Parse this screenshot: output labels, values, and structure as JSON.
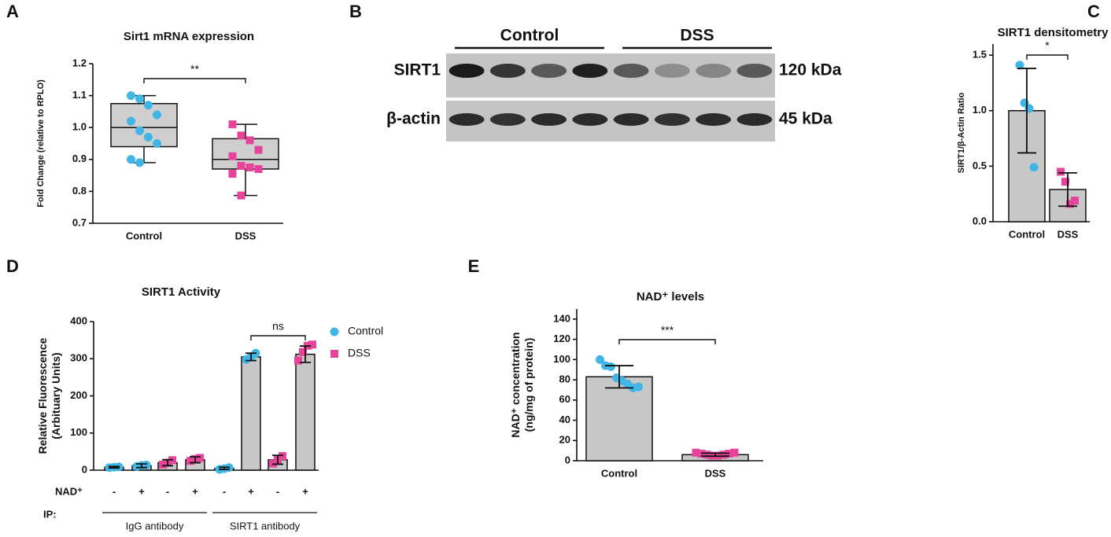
{
  "chart_data": [
    {
      "type": "box",
      "panel": "A",
      "title": "Sirt1 mRNA expression",
      "ylabel": "Fold Change (relative to RPLO)",
      "categories": [
        "Control",
        "DSS"
      ],
      "ylim": [
        0.7,
        1.2
      ],
      "yticks": [
        0.7,
        0.8,
        0.9,
        {
          "value": 1,
          "label": "1.0"
        },
        1.1,
        1.2
      ],
      "boxes": [
        {
          "color": "#41b6e6",
          "marker": "circle",
          "min": 0.89,
          "q1": 0.94,
          "median": 1.0,
          "q3": 1.075,
          "max": 1.1,
          "points": [
            1.1,
            1.09,
            1.07,
            1.04,
            1.02,
            0.99,
            0.97,
            0.95,
            0.9,
            0.89
          ]
        },
        {
          "color": "#e6449b",
          "marker": "square",
          "min": 0.787,
          "q1": 0.87,
          "median": 0.9,
          "q3": 0.965,
          "max": 1.01,
          "points": [
            1.01,
            0.975,
            0.96,
            0.93,
            0.91,
            0.88,
            0.875,
            0.87,
            0.855,
            0.787
          ]
        }
      ],
      "annotation": "**"
    },
    {
      "type": "blot",
      "panel": "B",
      "groups": [
        "Control",
        "DSS"
      ],
      "rows": [
        {
          "label": "SIRT1",
          "size": "120 kDa"
        },
        {
          "label": "β-actin",
          "size": "45 kDa"
        }
      ]
    },
    {
      "type": "bar",
      "panel": "C",
      "title": "SIRT1 densitometry",
      "ylabel": "SIRT1/β-Actin Ratio",
      "categories": [
        "Control",
        "DSS"
      ],
      "values": [
        1.0,
        0.29
      ],
      "errors": [
        0.38,
        0.15
      ],
      "color": "#c8c8c8",
      "point_colors": [
        "#41b6e6",
        "#e6449b"
      ],
      "markers": [
        "circle",
        "square"
      ],
      "points": [
        [
          1.41,
          1.07,
          1.02,
          0.49
        ],
        [
          0.45,
          0.36,
          0.16,
          0.19
        ]
      ],
      "ylim": [
        0,
        1.6
      ],
      "yticks": [
        {
          "value": 0,
          "label": "0.0"
        },
        0.5,
        {
          "value": 1,
          "label": "1.0"
        },
        1.5
      ],
      "annotation": "*"
    },
    {
      "type": "grouped",
      "panel": "D",
      "title": "SIRT1 Activity",
      "ylabel": [
        "Relative Fluorescence",
        "(Arbituary Units)"
      ],
      "row_label": "NAD⁺",
      "group_label": "IP:",
      "groups": [
        "IgG antibody",
        "SIRT1 antibody"
      ],
      "categories": [
        "-",
        "+",
        "-",
        "+",
        "-",
        "+",
        "-",
        "+"
      ],
      "color": "#c8c8c8",
      "series": [
        {
          "name": "Control",
          "color": "#41b6e6",
          "marker": "circle",
          "values": [
            8,
            12,
            null,
            null,
            5,
            305,
            null,
            null
          ],
          "errors": [
            2,
            5,
            null,
            null,
            3,
            10,
            null,
            null
          ],
          "points": [
            [
              7,
              8,
              9
            ],
            [
              10,
              13,
              14
            ],
            null,
            null,
            [
              2,
              4,
              7
            ],
            [
              298,
              305,
              315
            ],
            null,
            null
          ]
        },
        {
          "name": "DSS",
          "color": "#e6449b",
          "marker": "square",
          "values": [
            null,
            null,
            20,
            28,
            null,
            null,
            28,
            312
          ],
          "errors": [
            null,
            null,
            8,
            8,
            null,
            null,
            12,
            22
          ],
          "points": [
            null,
            null,
            [
              15,
              20,
              27
            ],
            [
              25,
              30,
              33
            ],
            null,
            null,
            [
              18,
              28,
              38
            ],
            [
              295,
              318,
              335,
              338
            ]
          ]
        }
      ],
      "ylim": [
        0,
        400
      ],
      "yticks": [
        0,
        100,
        200,
        300,
        400
      ],
      "annotation": "ns"
    },
    {
      "type": "bar",
      "panel": "E",
      "title": "NAD⁺ levels",
      "ylabel": [
        "NAD⁺ concentration",
        "(ng/mg of protein)"
      ],
      "categories": [
        "Control",
        "DSS"
      ],
      "values": [
        83,
        6
      ],
      "errors": [
        11,
        1.5
      ],
      "color": "#c8c8c8",
      "point_colors": [
        "#41b6e6",
        "#e6449b"
      ],
      "markers": [
        "circle",
        "square"
      ],
      "points": [
        [
          100,
          94,
          93,
          82,
          79,
          76,
          72,
          73
        ],
        [
          8,
          7,
          6,
          5,
          5,
          6,
          7,
          8
        ]
      ],
      "ylim": [
        0,
        150
      ],
      "yticks": [
        0,
        20,
        40,
        60,
        80,
        100,
        120,
        140
      ],
      "annotation": "***"
    }
  ]
}
